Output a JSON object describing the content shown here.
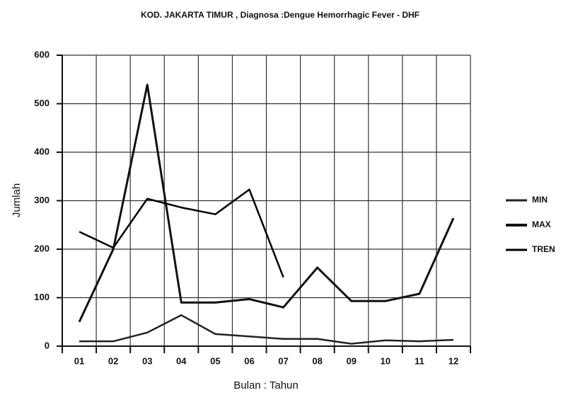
{
  "chart_data": {
    "type": "line",
    "title": "KOD. JAKARTA TIMUR   , Diagnosa :Dengue Hemorrhagic Fever - DHF",
    "x_label": "Bulan : Tahun",
    "y_label": "Jumlah",
    "categories": [
      "01",
      "02",
      "03",
      "04",
      "05",
      "06",
      "07",
      "08",
      "09",
      "10",
      "11",
      "12"
    ],
    "series": [
      {
        "name": "MIN",
        "color": "#222222",
        "values": [
          10,
          10,
          28,
          64,
          25,
          20,
          15,
          15,
          5,
          12,
          10,
          13
        ]
      },
      {
        "name": "MAX",
        "color": "#111111",
        "values": [
          50,
          200,
          539,
          90,
          90,
          97,
          80,
          162,
          93,
          93,
          108,
          264
        ]
      },
      {
        "name": "TREN",
        "color": "#000000",
        "values": [
          236,
          203,
          304,
          286,
          272,
          323,
          142,
          null,
          null,
          null,
          null,
          null
        ]
      }
    ],
    "ylim": [
      0,
      600
    ],
    "yticks": [
      0,
      100,
      200,
      300,
      400,
      500,
      600
    ],
    "grid": true
  }
}
